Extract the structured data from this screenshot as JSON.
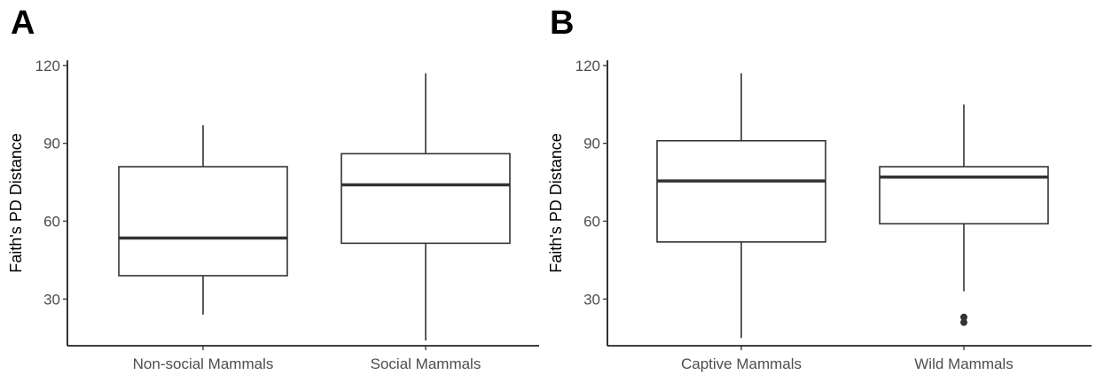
{
  "chart_data": [
    {
      "type": "box",
      "panel_label": "A",
      "xlabel": "",
      "ylabel": "Faith's PD Distance",
      "ylim": [
        12,
        122
      ],
      "yticks": [
        30,
        60,
        90,
        120
      ],
      "grid": false,
      "categories": [
        "Non-social Mammals",
        "Social Mammals"
      ],
      "boxes": [
        {
          "category": "Non-social Mammals",
          "whisker_low": 24,
          "q1": 39,
          "median": 53.5,
          "q3": 81,
          "whisker_high": 97,
          "outliers": []
        },
        {
          "category": "Social Mammals",
          "whisker_low": 14,
          "q1": 51.5,
          "median": 74,
          "q3": 86,
          "whisker_high": 117,
          "outliers": []
        }
      ]
    },
    {
      "type": "box",
      "panel_label": "B",
      "xlabel": "",
      "ylabel": "Faith's PD Distance",
      "ylim": [
        12,
        122
      ],
      "yticks": [
        30,
        60,
        90,
        120
      ],
      "grid": false,
      "categories": [
        "Captive Mammals",
        "Wild Mammals"
      ],
      "boxes": [
        {
          "category": "Captive Mammals",
          "whisker_low": 15,
          "q1": 52,
          "median": 75.5,
          "q3": 91,
          "whisker_high": 117,
          "outliers": []
        },
        {
          "category": "Wild Mammals",
          "whisker_low": 33,
          "q1": 59,
          "median": 77,
          "q3": 81,
          "whisker_high": 105,
          "outliers": [
            21,
            23
          ]
        }
      ]
    }
  ]
}
